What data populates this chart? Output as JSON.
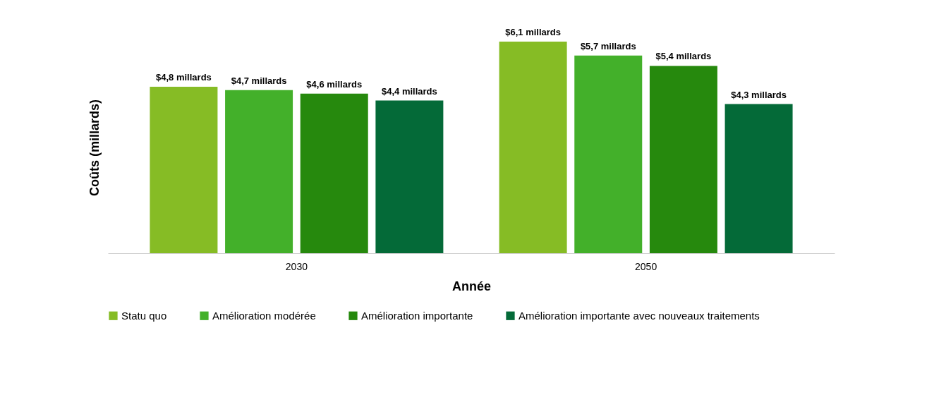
{
  "chart_data": {
    "type": "bar",
    "xlabel": "Année",
    "ylabel": "Coûts (millards)",
    "categories": [
      "2030",
      "2050"
    ],
    "legend": "bottom",
    "grid": false,
    "series": [
      {
        "name": "Statu quo",
        "color": "#86bc25",
        "values": [
          4.8,
          6.1
        ],
        "value_labels": [
          "$4,8 millards",
          "$6,1 millards"
        ]
      },
      {
        "name": "Amélioration modérée",
        "color": "#43b02a",
        "values": [
          4.7,
          5.7
        ],
        "value_labels": [
          "$4,7 millards",
          "$5,7 millards"
        ]
      },
      {
        "name": "Amélioration importante",
        "color": "#26890d",
        "values": [
          4.6,
          5.4
        ],
        "value_labels": [
          "$4,6 millards",
          "$5,4 millards"
        ]
      },
      {
        "name": "Amélioration importante avec nouveaux traitements",
        "color": "#046a38",
        "values": [
          4.4,
          4.3
        ],
        "value_labels": [
          "$4,4 millards",
          "$4,3 millards"
        ]
      }
    ]
  }
}
